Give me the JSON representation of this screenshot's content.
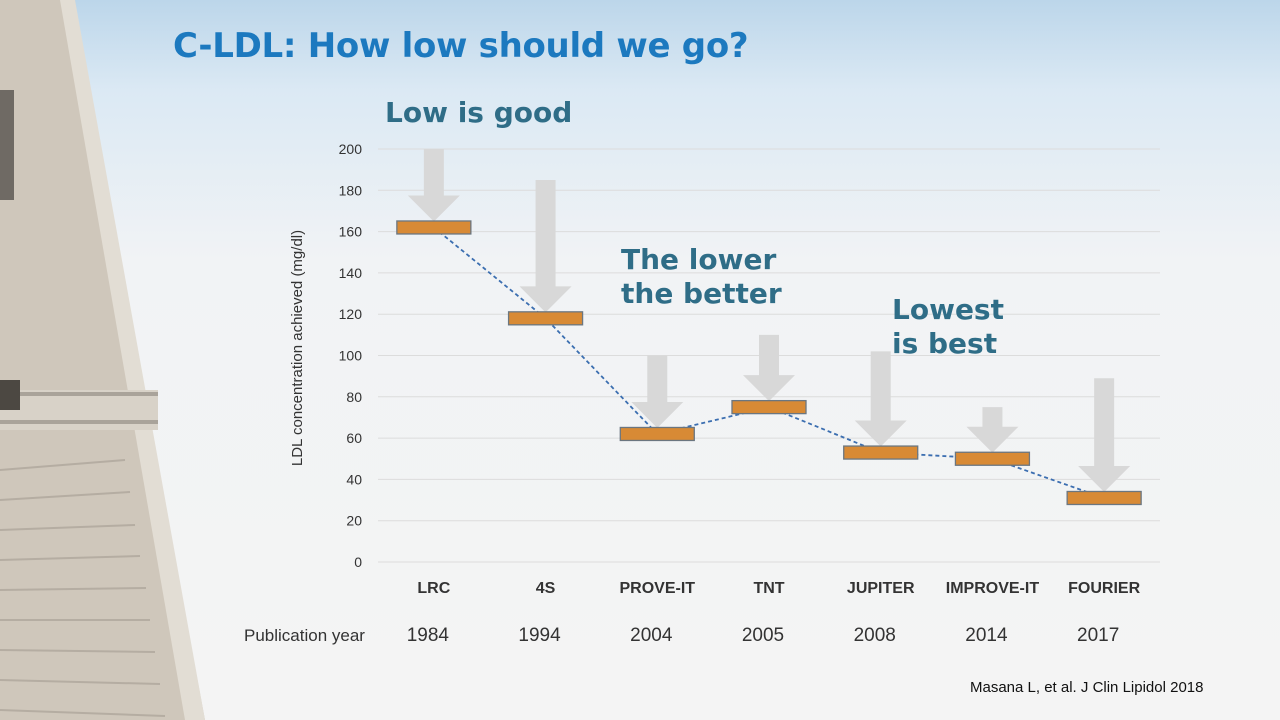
{
  "slide": {
    "title": "C-LDL: How low should we go?",
    "citation": "Masana L, et al. J Clin Lipidol 2018"
  },
  "annotations": {
    "low_is_good": "Low is good",
    "the_lower_line1": "The lower",
    "the_lower_line2": "the better",
    "lowest_line1": "Lowest",
    "lowest_line2": "is best"
  },
  "chart_data": {
    "type": "bar",
    "title": "",
    "ylabel": "LDL concentration achieved  (mg/dl)",
    "ylim": [
      0,
      200
    ],
    "yticks": [
      0,
      20,
      40,
      60,
      80,
      100,
      120,
      140,
      160,
      180,
      200
    ],
    "grid": true,
    "categories": [
      "LRC",
      "4S",
      "PROVE-IT",
      "TNT",
      "JUPITER",
      "IMPROVE-IT",
      "FOURIER"
    ],
    "publication_label": "Publication year",
    "years": [
      "1984",
      "1994",
      "2004",
      "2005",
      "2008",
      "2014",
      "2017"
    ],
    "baseline": [
      200,
      185,
      100,
      110,
      102,
      75,
      89
    ],
    "achieved": [
      162,
      118,
      62,
      75,
      53,
      50,
      31
    ],
    "colors": {
      "marker": "#d88a35",
      "marker_border": "#6b7680",
      "arrow": "#d8d8d8",
      "trend_line": "#3b6eb0",
      "grid": "#dcdcdc"
    }
  }
}
